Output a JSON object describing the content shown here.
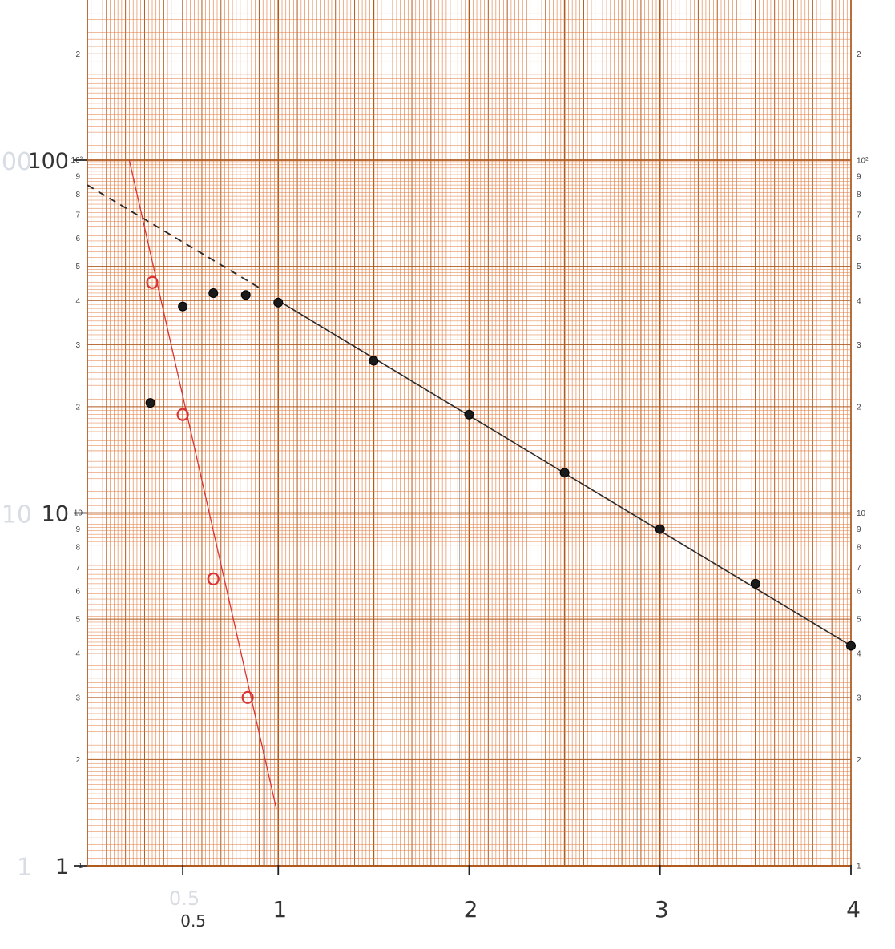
{
  "chart_data": {
    "type": "scatter",
    "title": "",
    "xlabel": "",
    "ylabel": "",
    "y_scale": "log",
    "xlim": [
      0,
      4
    ],
    "ylim": [
      1,
      250
    ],
    "grid": true,
    "x_ticks": [
      {
        "value": 0.5,
        "label": "0.5"
      },
      {
        "value": 1,
        "label": "1"
      },
      {
        "value": 2,
        "label": "2"
      },
      {
        "value": 3,
        "label": "3"
      },
      {
        "value": 4,
        "label": "4"
      }
    ],
    "y_ticks_left": [
      {
        "value": 100,
        "label": "100"
      },
      {
        "value": 10,
        "label": "10"
      },
      {
        "value": 1,
        "label": "1"
      }
    ],
    "y_decade_print_left": [
      {
        "value": 1,
        "label": "1"
      },
      {
        "value": 10,
        "label": "10"
      },
      {
        "value": 100,
        "label": "10²"
      }
    ],
    "y_minor_labels": [
      "2",
      "3",
      "4",
      "5",
      "6",
      "7",
      "8",
      "9"
    ],
    "y_minor_labels_top": [
      "2"
    ],
    "y_decade_print_right": [
      {
        "value": 1,
        "label": "1"
      },
      {
        "value": 10,
        "label": "10"
      },
      {
        "value": 100,
        "label": "10²"
      }
    ],
    "series": [
      {
        "marker": "filled-dot",
        "color": "#1a1a1a",
        "points": [
          [
            0.33,
            20.5
          ],
          [
            0.5,
            38.5
          ],
          [
            0.66,
            42
          ],
          [
            0.83,
            41.5
          ],
          [
            1.0,
            39.5
          ],
          [
            1.5,
            27
          ],
          [
            2.0,
            19
          ],
          [
            2.5,
            13
          ],
          [
            3.0,
            9
          ],
          [
            3.5,
            6.3
          ],
          [
            4.0,
            4.2
          ]
        ]
      },
      {
        "marker": "open-circle",
        "color": "#d83434",
        "points": [
          [
            0.34,
            45
          ],
          [
            0.5,
            19
          ],
          [
            0.66,
            6.5
          ],
          [
            0.84,
            3.0
          ]
        ]
      }
    ],
    "lines": [
      {
        "color": "#2a2a2a",
        "style": "solid",
        "x": [
          1.0,
          4.0
        ],
        "y": [
          40,
          4.2
        ]
      },
      {
        "color": "#2a2a2a",
        "style": "dashed",
        "x": [
          0.0,
          0.9
        ],
        "y": [
          85,
          43.5
        ]
      },
      {
        "color": "#d83434",
        "style": "solid",
        "x": [
          0.22,
          0.99
        ],
        "y": [
          100,
          1.45
        ]
      }
    ],
    "drop_lines": [
      {
        "x": 0.8,
        "y": 4.0
      },
      {
        "x": 0.93,
        "y": 2.2
      },
      {
        "x": 1.95,
        "y": 19.5
      },
      {
        "x": 2.88,
        "y": 10.0
      }
    ],
    "colors": {
      "grid_major": "#b05a1e",
      "grid_minor": "#e0783a",
      "paper": "#ffffff"
    }
  }
}
